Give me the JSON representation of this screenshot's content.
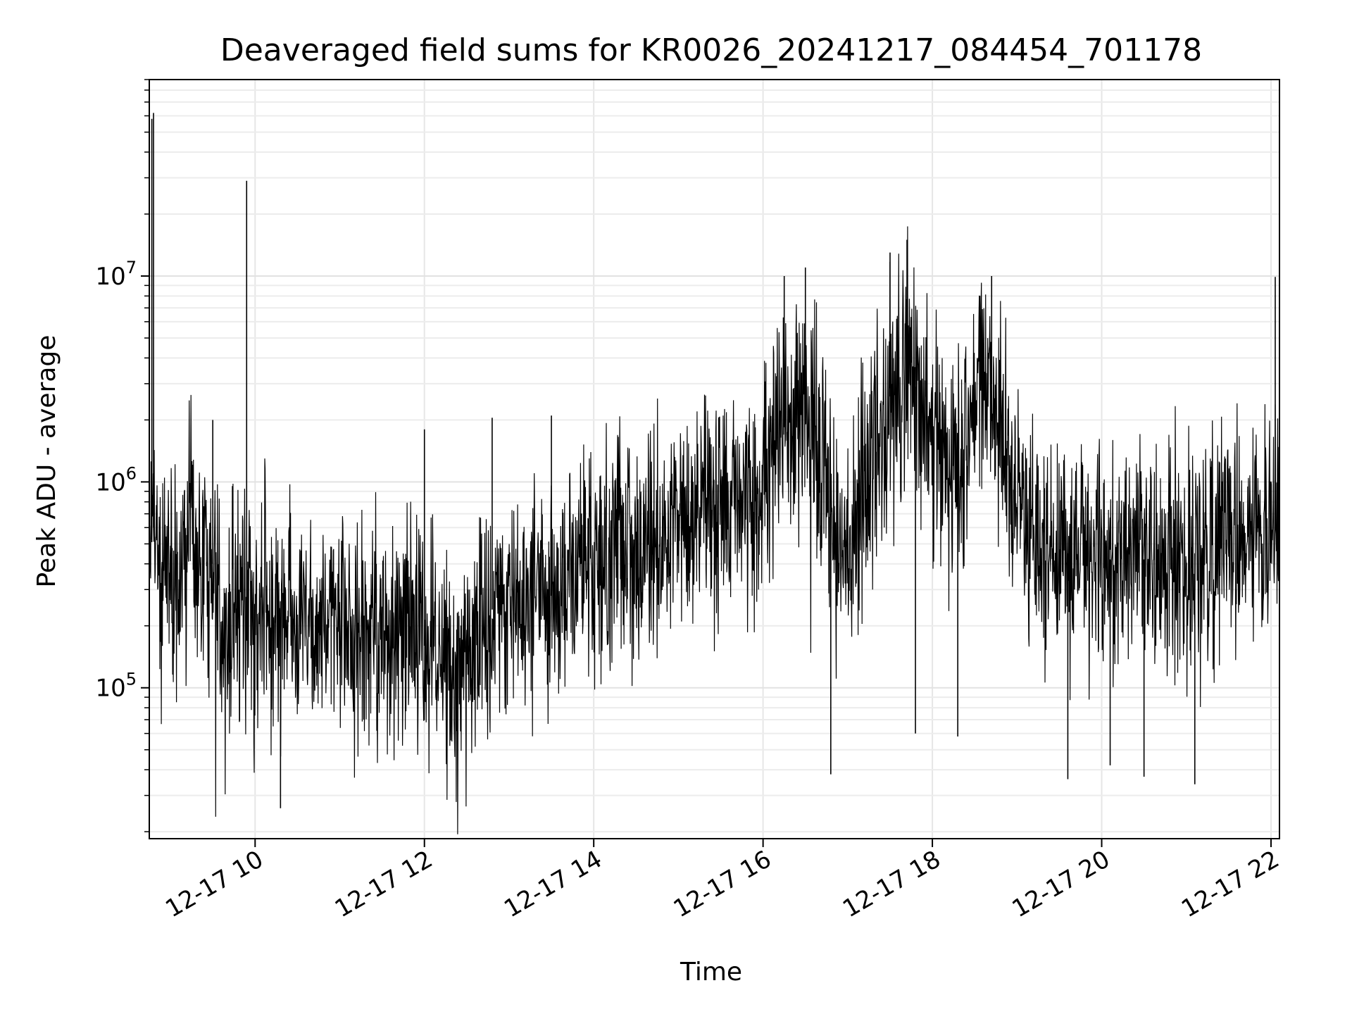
{
  "chart_data": {
    "type": "line",
    "title": "Deaveraged field sums for KR0026_20241217_084454_701178",
    "xlabel": "Time",
    "ylabel": "Peak ADU - average",
    "yscale": "log",
    "ylim": [
      18500,
      90000000
    ],
    "xlim": [
      8.75,
      22.1
    ],
    "grid": true,
    "x_ticks": [
      {
        "value": 10,
        "label": "12-17 10"
      },
      {
        "value": 12,
        "label": "12-17 12"
      },
      {
        "value": 14,
        "label": "12-17 14"
      },
      {
        "value": 16,
        "label": "12-17 16"
      },
      {
        "value": 18,
        "label": "12-17 18"
      },
      {
        "value": 20,
        "label": "12-17 20"
      },
      {
        "value": 22,
        "label": "12-17 22"
      }
    ],
    "y_ticks": [
      {
        "value": 100000,
        "base": "10",
        "exp": "5"
      },
      {
        "value": 1000000,
        "base": "10",
        "exp": "6"
      },
      {
        "value": 10000000,
        "base": "10",
        "exp": "7"
      }
    ],
    "series": [
      {
        "name": "Peak ADU - average",
        "color": "#000000",
        "x": [
          8.75,
          8.8,
          8.9,
          9.0,
          9.1,
          9.2,
          9.3,
          9.4,
          9.5,
          9.6,
          9.7,
          9.8,
          9.9,
          10.0,
          10.1,
          10.2,
          10.3,
          10.4,
          10.5,
          10.6,
          10.7,
          10.8,
          10.9,
          11.0,
          11.1,
          11.2,
          11.3,
          11.4,
          11.5,
          11.6,
          11.7,
          11.8,
          11.9,
          12.0,
          12.1,
          12.2,
          12.3,
          12.4,
          12.5,
          12.6,
          12.7,
          12.8,
          12.9,
          13.0,
          13.1,
          13.2,
          13.3,
          13.4,
          13.5,
          13.6,
          13.7,
          13.8,
          13.9,
          14.0,
          14.1,
          14.2,
          14.3,
          14.4,
          14.5,
          14.6,
          14.7,
          14.8,
          14.9,
          15.0,
          15.1,
          15.2,
          15.3,
          15.4,
          15.5,
          15.6,
          15.7,
          15.8,
          15.9,
          16.0,
          16.1,
          16.2,
          16.3,
          16.4,
          16.5,
          16.6,
          16.7,
          16.8,
          16.9,
          17.0,
          17.1,
          17.2,
          17.3,
          17.4,
          17.5,
          17.6,
          17.7,
          17.8,
          17.9,
          18.0,
          18.1,
          18.2,
          18.3,
          18.4,
          18.5,
          18.6,
          18.7,
          18.8,
          18.9,
          19.0,
          19.1,
          19.2,
          19.3,
          19.4,
          19.5,
          19.6,
          19.7,
          19.8,
          19.9,
          20.0,
          20.1,
          20.2,
          20.3,
          20.4,
          20.5,
          20.6,
          20.7,
          20.8,
          20.9,
          21.0,
          21.1,
          21.2,
          21.3,
          21.4,
          21.5,
          21.6,
          21.7,
          21.8,
          21.9,
          22.0,
          22.1
        ],
        "y": [
          400000,
          600000,
          450000,
          380000,
          350000,
          500000,
          420000,
          450000,
          400000,
          220000,
          180000,
          250000,
          230000,
          210000,
          260000,
          200000,
          220000,
          250000,
          230000,
          210000,
          200000,
          190000,
          220000,
          190000,
          200000,
          180000,
          190000,
          200000,
          170000,
          180000,
          190000,
          170000,
          200000,
          160000,
          180000,
          130000,
          120000,
          140000,
          130000,
          180000,
          210000,
          240000,
          260000,
          300000,
          330000,
          280000,
          320000,
          300000,
          280000,
          330000,
          360000,
          330000,
          400000,
          360000,
          420000,
          430000,
          460000,
          420000,
          440000,
          480000,
          500000,
          470000,
          520000,
          580000,
          620000,
          700000,
          780000,
          720000,
          760000,
          820000,
          830000,
          800000,
          850000,
          1100000,
          1300000,
          1700000,
          2000000,
          2200000,
          1900000,
          2000000,
          1300000,
          700000,
          500000,
          400000,
          700000,
          1000000,
          1400000,
          1700000,
          2600000,
          2800000,
          3200000,
          2900000,
          2600000,
          2000000,
          1300000,
          900000,
          1100000,
          1700000,
          2400000,
          2900000,
          3000000,
          2200000,
          1300000,
          800000,
          650000,
          500000,
          450000,
          420000,
          480000,
          450000,
          500000,
          440000,
          460000,
          430000,
          420000,
          400000,
          380000,
          400000,
          420000,
          430000,
          450000,
          460000,
          420000,
          440000,
          450000,
          480000,
          460000,
          470000,
          500000,
          520000,
          540000,
          560000,
          570000,
          580000,
          620000
        ],
        "spikes": [
          {
            "x": 8.78,
            "y": 58000000
          },
          {
            "x": 8.8,
            "y": 62000000
          },
          {
            "x": 9.5,
            "y": 2000000
          },
          {
            "x": 9.9,
            "y": 29000000
          },
          {
            "x": 10.3,
            "y": 26000
          },
          {
            "x": 12.0,
            "y": 1800000
          },
          {
            "x": 12.8,
            "y": 2050000
          },
          {
            "x": 13.5,
            "y": 2100000
          },
          {
            "x": 16.25,
            "y": 10000000
          },
          {
            "x": 16.5,
            "y": 11000000
          },
          {
            "x": 16.8,
            "y": 38000
          },
          {
            "x": 17.5,
            "y": 13000000
          },
          {
            "x": 17.7,
            "y": 15000000
          },
          {
            "x": 17.8,
            "y": 60000
          },
          {
            "x": 18.3,
            "y": 58000
          },
          {
            "x": 18.7,
            "y": 10000000
          },
          {
            "x": 19.6,
            "y": 36000
          },
          {
            "x": 20.1,
            "y": 42000
          },
          {
            "x": 20.5,
            "y": 37000
          },
          {
            "x": 21.1,
            "y": 34000
          },
          {
            "x": 22.05,
            "y": 9900000
          }
        ]
      }
    ]
  }
}
